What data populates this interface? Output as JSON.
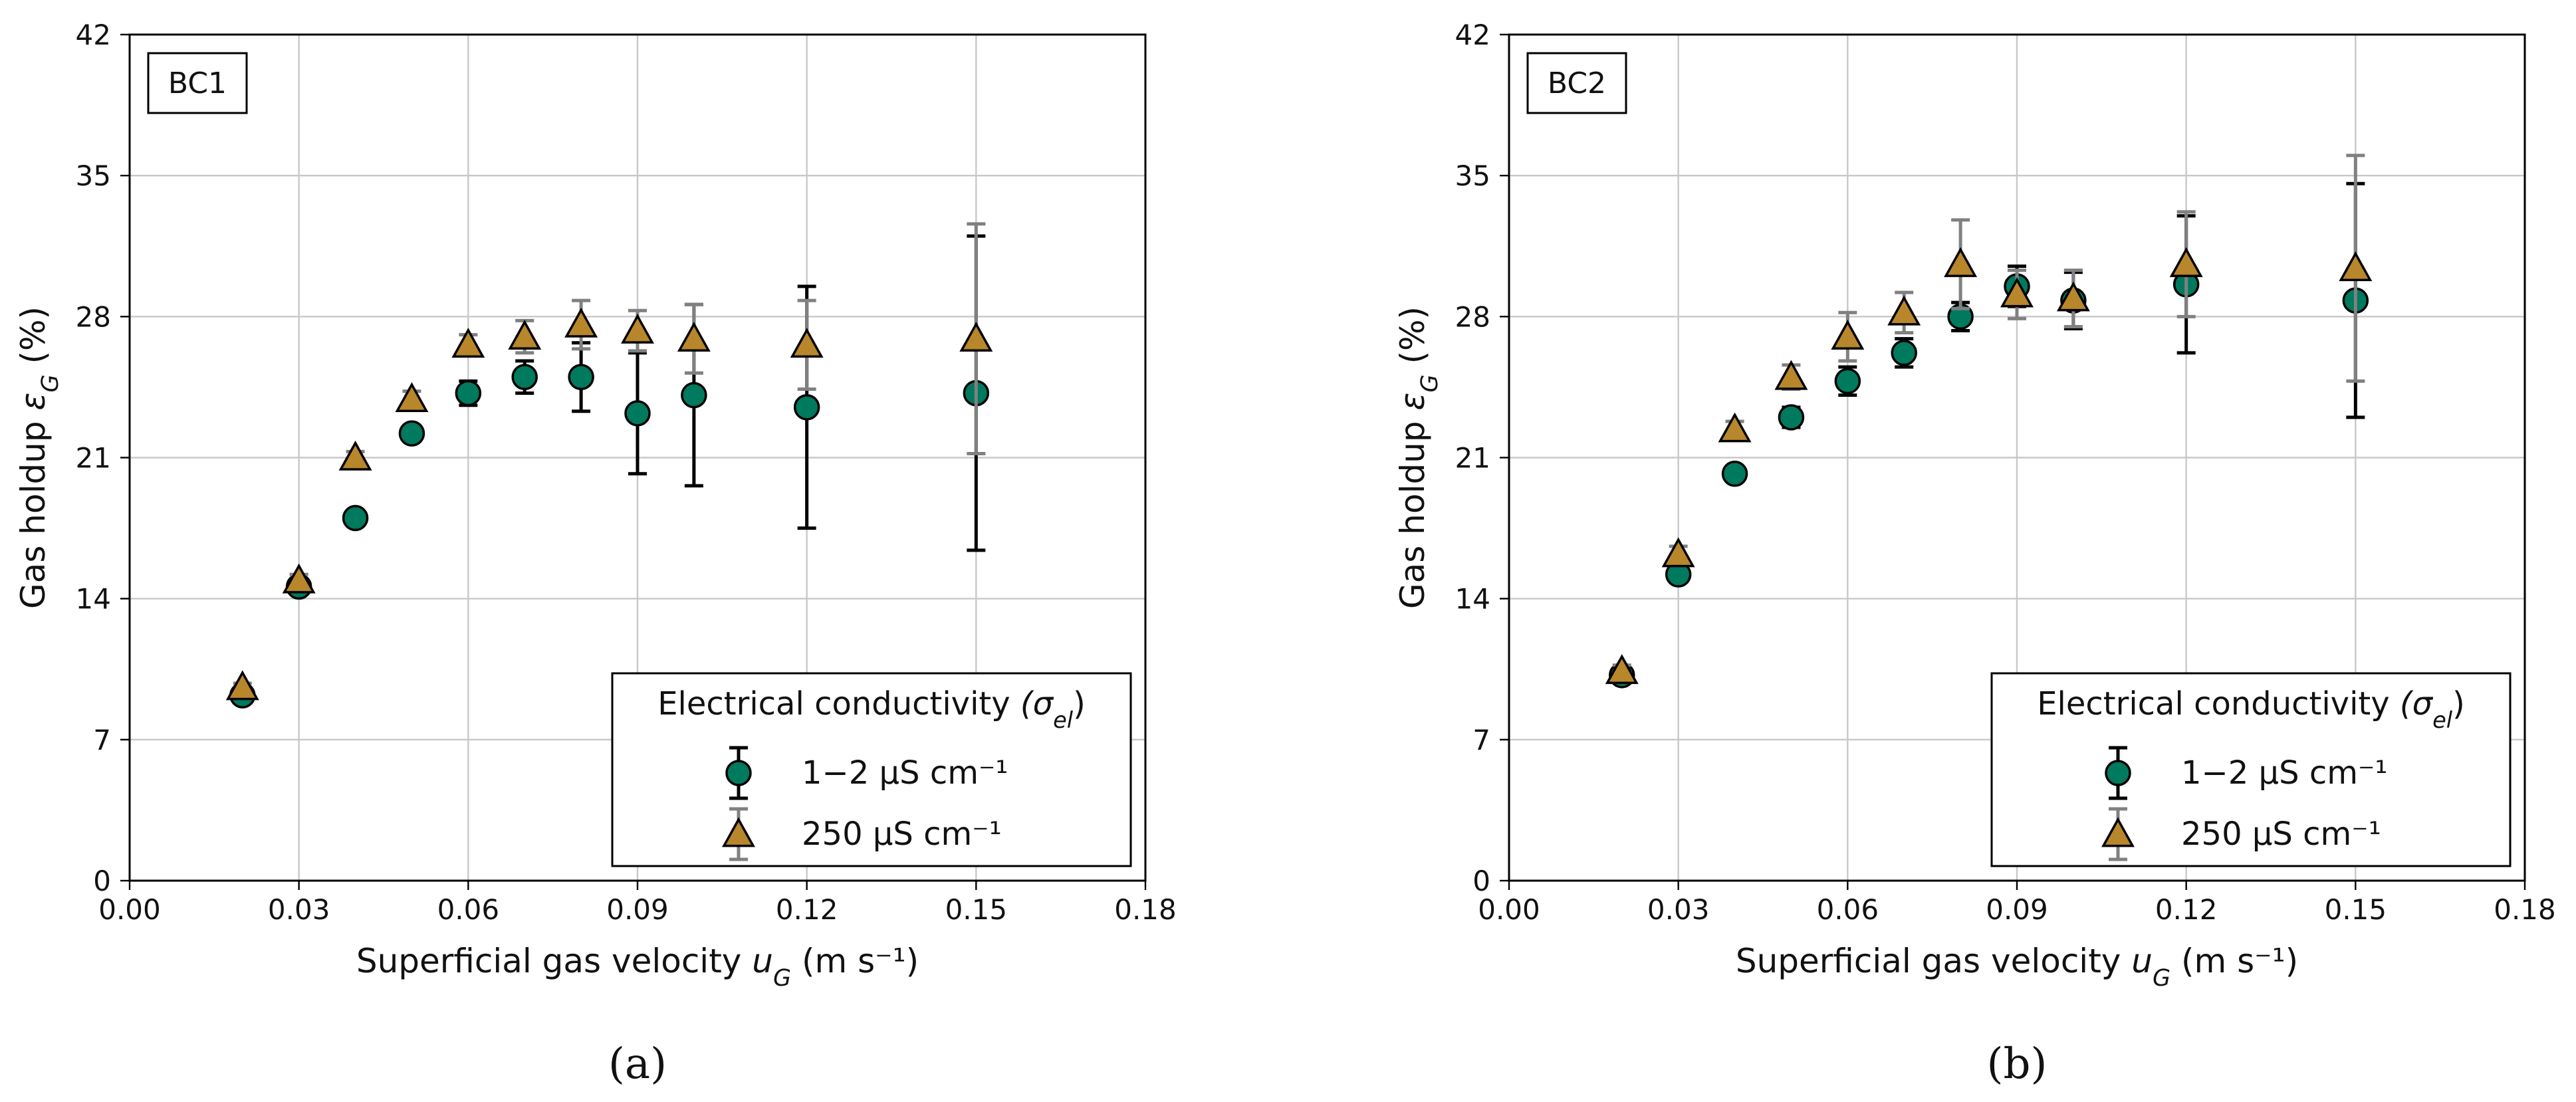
{
  "colors": {
    "series1": "#007a5e",
    "series2": "#b8862b",
    "err1": "#000000",
    "err2": "#808080",
    "grid": "#c8c8c8",
    "axis": "#000000"
  },
  "chart_data": [
    {
      "type": "scatter",
      "panel_tag": "BC1",
      "caption": "(a)",
      "xlabel": "Superficial gas velocity u_G (m s⁻¹)",
      "ylabel": "Gas holdup ε_G (%)",
      "xlim": [
        0,
        0.18
      ],
      "ylim": [
        0,
        42
      ],
      "xticks": [
        "0.00",
        "0.03",
        "0.06",
        "0.09",
        "0.12",
        "0.15",
        "0.18"
      ],
      "yticks": [
        "0",
        "7",
        "14",
        "21",
        "28",
        "35",
        "42"
      ],
      "grid": true,
      "legend": {
        "position": "bottom-right",
        "title": "Electrical conductivity (σ_el)",
        "entries": [
          "1−2 µS cm⁻¹",
          "250 µS cm⁻¹"
        ]
      },
      "series": [
        {
          "name": "1−2 µS cm⁻¹",
          "marker": "circle",
          "x": [
            0.02,
            0.03,
            0.04,
            0.05,
            0.06,
            0.07,
            0.08,
            0.09,
            0.1,
            0.12,
            0.15
          ],
          "y": [
            9.2,
            14.6,
            18.0,
            22.2,
            24.2,
            25.0,
            25.0,
            23.2,
            24.1,
            23.5,
            24.2
          ],
          "yerr": [
            0.2,
            0.3,
            0.3,
            0.3,
            0.6,
            0.8,
            1.7,
            3.0,
            4.5,
            6.0,
            7.8
          ]
        },
        {
          "name": "250 µS cm⁻¹",
          "marker": "triangle",
          "x": [
            0.02,
            0.03,
            0.04,
            0.05,
            0.06,
            0.07,
            0.08,
            0.09,
            0.1,
            0.12,
            0.15
          ],
          "y": [
            9.6,
            14.9,
            21.0,
            23.9,
            26.6,
            27.0,
            27.6,
            27.3,
            26.9,
            26.6,
            26.9
          ],
          "yerr": [
            0.2,
            0.3,
            0.3,
            0.4,
            0.5,
            0.8,
            1.2,
            1.0,
            1.7,
            2.2,
            5.7
          ]
        }
      ]
    },
    {
      "type": "scatter",
      "panel_tag": "BC2",
      "caption": "(b)",
      "xlabel": "Superficial gas velocity u_G (m s⁻¹)",
      "ylabel": "Gas holdup ε_G (%)",
      "xlim": [
        0,
        0.18
      ],
      "ylim": [
        0,
        42
      ],
      "xticks": [
        "0.00",
        "0.03",
        "0.06",
        "0.09",
        "0.12",
        "0.15",
        "0.18"
      ],
      "yticks": [
        "0",
        "7",
        "14",
        "21",
        "28",
        "35",
        "42"
      ],
      "grid": true,
      "legend": {
        "position": "bottom-right",
        "title": "Electrical conductivity (σ_el)",
        "entries": [
          "1−2 µS cm⁻¹",
          "250 µS cm⁻¹"
        ]
      },
      "series": [
        {
          "name": "1−2 µS cm⁻¹",
          "marker": "circle",
          "x": [
            0.02,
            0.03,
            0.04,
            0.05,
            0.06,
            0.07,
            0.08,
            0.09,
            0.1,
            0.12,
            0.15
          ],
          "y": [
            10.2,
            15.2,
            20.2,
            23.0,
            24.8,
            26.2,
            28.0,
            29.5,
            28.8,
            29.6,
            28.8
          ],
          "yerr": [
            0.3,
            0.3,
            0.3,
            0.5,
            0.7,
            0.7,
            0.7,
            1.0,
            1.4,
            3.4,
            5.8
          ]
        },
        {
          "name": "250 µS cm⁻¹",
          "marker": "triangle",
          "x": [
            0.02,
            0.03,
            0.04,
            0.05,
            0.06,
            0.07,
            0.08,
            0.09,
            0.1,
            0.12,
            0.15
          ],
          "y": [
            10.4,
            16.2,
            22.4,
            25.0,
            27.0,
            28.2,
            30.6,
            29.1,
            28.9,
            30.6,
            30.4
          ],
          "yerr": [
            0.3,
            0.4,
            0.4,
            0.6,
            1.2,
            1.0,
            2.2,
            1.2,
            1.4,
            2.6,
            5.6
          ]
        }
      ]
    }
  ]
}
